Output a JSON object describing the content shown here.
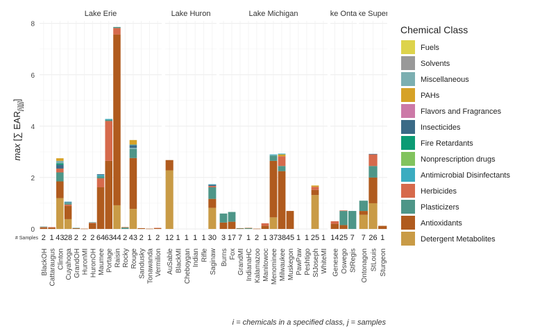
{
  "chart_data": {
    "type": "bar",
    "stacked": true,
    "ylabel_prefix": "max",
    "ylabel_main": "[∑ EAR",
    "ylabel_sub": "[i]",
    "ylabel_sub2": "[j]",
    "ylabel_suffix": "]",
    "footnote": "i = chemicals in a specified class, j = samples",
    "samples_label": "# Samples",
    "ylim": [
      0,
      8.1
    ],
    "yticks": [
      0,
      2,
      4,
      6,
      8
    ],
    "grid": true,
    "legend": {
      "title": "Chemical Class",
      "position": "right",
      "items": [
        {
          "name": "Fuels",
          "color": "#DDD34B"
        },
        {
          "name": "Solvents",
          "color": "#999999"
        },
        {
          "name": "Miscellaneous",
          "color": "#7CAFB1"
        },
        {
          "name": "PAHs",
          "color": "#D6A227"
        },
        {
          "name": "Flavors and Fragrances",
          "color": "#CC79A7"
        },
        {
          "name": "Insecticides",
          "color": "#3B6A86"
        },
        {
          "name": "Fire Retardants",
          "color": "#0C9B74"
        },
        {
          "name": "Nonprescription drugs",
          "color": "#82C35E"
        },
        {
          "name": "Antimicrobial Disinfectants",
          "color": "#3BACC0"
        },
        {
          "name": "Herbicides",
          "color": "#D66A4C"
        },
        {
          "name": "Plasticizers",
          "color": "#4E9688"
        },
        {
          "name": "Antioxidants",
          "color": "#B05B1E"
        },
        {
          "name": "Detergent Metabolites",
          "color": "#C99B46"
        }
      ]
    },
    "facets": [
      {
        "title": "Lake Erie",
        "sites": [
          {
            "name": "BlackOH",
            "samples": "2",
            "stack": [
              [
                "Antioxidants",
                0.05
              ],
              [
                "Herbicides",
                0.02
              ],
              [
                "Plasticizers",
                0.02
              ]
            ]
          },
          {
            "name": "Cattaraugus",
            "samples": "1",
            "stack": [
              [
                "Antioxidants",
                0.05
              ],
              [
                "Herbicides",
                0.02
              ]
            ]
          },
          {
            "name": "Clinton",
            "samples": "43",
            "stack": [
              [
                "Detergent Metabolites",
                1.2
              ],
              [
                "Antioxidants",
                0.65
              ],
              [
                "Plasticizers",
                0.35
              ],
              [
                "Herbicides",
                0.15
              ],
              [
                "Insecticides",
                0.15
              ],
              [
                "Fire Retardants",
                0.05
              ],
              [
                "Miscellaneous",
                0.1
              ],
              [
                "PAHs",
                0.1
              ]
            ]
          },
          {
            "name": "Cuyahoga",
            "samples": "28",
            "stack": [
              [
                "Detergent Metabolites",
                0.38
              ],
              [
                "Antioxidants",
                0.52
              ],
              [
                "Herbicides",
                0.05
              ],
              [
                "Plasticizers",
                0.05
              ],
              [
                "Miscellaneous",
                0.02
              ],
              [
                "Insecticides",
                0.02
              ],
              [
                "Antimicrobial Disinfectants",
                0.02
              ]
            ]
          },
          {
            "name": "GrandOH",
            "samples": "2",
            "stack": [
              [
                "Antioxidants",
                0.03
              ],
              [
                "Plasticizers",
                0.01
              ]
            ]
          },
          {
            "name": "HuronMI",
            "samples": "2",
            "stack": [
              [
                "Antioxidants",
                0.01
              ]
            ]
          },
          {
            "name": "HuronOH",
            "samples": "2",
            "stack": [
              [
                "Antioxidants",
                0.22
              ],
              [
                "Herbicides",
                0.02
              ],
              [
                "Plasticizers",
                0.02
              ]
            ]
          },
          {
            "name": "Maumee",
            "samples": "64",
            "stack": [
              [
                "Antioxidants",
                1.62
              ],
              [
                "Herbicides",
                0.35
              ],
              [
                "Plasticizers",
                0.08
              ],
              [
                "Antimicrobial Disinfectants",
                0.05
              ],
              [
                "Insecticides",
                0.03
              ]
            ]
          },
          {
            "name": "Portage",
            "samples": "63",
            "stack": [
              [
                "Antioxidants",
                2.65
              ],
              [
                "Herbicides",
                1.55
              ],
              [
                "Plasticizers",
                0.05
              ],
              [
                "Antimicrobial Disinfectants",
                0.03
              ]
            ]
          },
          {
            "name": "Raisin",
            "samples": "44",
            "stack": [
              [
                "Detergent Metabolites",
                0.92
              ],
              [
                "Antioxidants",
                6.65
              ],
              [
                "Herbicides",
                0.25
              ],
              [
                "Plasticizers",
                0.04
              ]
            ]
          },
          {
            "name": "Rocky",
            "samples": "2",
            "stack": [
              [
                "Plasticizers",
                0.05
              ],
              [
                "Antioxidants",
                0.02
              ]
            ]
          },
          {
            "name": "Rouge",
            "samples": "43",
            "stack": [
              [
                "Detergent Metabolites",
                0.78
              ],
              [
                "Antioxidants",
                1.98
              ],
              [
                "Plasticizers",
                0.35
              ],
              [
                "Miscellaneous",
                0.05
              ],
              [
                "Insecticides",
                0.1
              ],
              [
                "Antimicrobial Disinfectants",
                0.02
              ],
              [
                "PAHs",
                0.18
              ]
            ]
          },
          {
            "name": "Sandusky",
            "samples": "2",
            "stack": [
              [
                "Antioxidants",
                0.03
              ]
            ]
          },
          {
            "name": "Tonawanda",
            "samples": "1",
            "stack": [
              [
                "Antioxidants",
                0.01
              ]
            ]
          },
          {
            "name": "Vermilion",
            "samples": "2",
            "stack": [
              [
                "Antioxidants",
                0.03
              ],
              [
                "Herbicides",
                0.01
              ]
            ]
          }
        ]
      },
      {
        "title": "Lake Huron",
        "sites": [
          {
            "name": "AuSable",
            "samples": "12",
            "stack": [
              [
                "Detergent Metabolites",
                2.28
              ],
              [
                "Antioxidants",
                0.4
              ]
            ]
          },
          {
            "name": "BlackMI",
            "samples": "1",
            "stack": []
          },
          {
            "name": "Cheboygan",
            "samples": "1",
            "stack": []
          },
          {
            "name": "Indian",
            "samples": "1",
            "stack": []
          },
          {
            "name": "Rifle",
            "samples": "1",
            "stack": []
          },
          {
            "name": "Saginaw",
            "samples": "30",
            "stack": [
              [
                "Detergent Metabolites",
                0.82
              ],
              [
                "Antioxidants",
                0.35
              ],
              [
                "Plasticizers",
                0.45
              ],
              [
                "Herbicides",
                0.05
              ],
              [
                "Insecticides",
                0.05
              ],
              [
                "Antimicrobial Disinfectants",
                0.02
              ]
            ]
          }
        ]
      },
      {
        "title": "Lake Michigan",
        "sites": [
          {
            "name": "Burns",
            "samples": "3",
            "stack": [
              [
                "Antioxidants",
                0.25
              ],
              [
                "Plasticizers",
                0.35
              ]
            ]
          },
          {
            "name": "Fox",
            "samples": "17",
            "stack": [
              [
                "Antioxidants",
                0.28
              ],
              [
                "Plasticizers",
                0.38
              ]
            ]
          },
          {
            "name": "GrandMI",
            "samples": "7",
            "stack": [
              [
                "Plasticizers",
                0.02
              ],
              [
                "Antioxidants",
                0.01
              ]
            ]
          },
          {
            "name": "IndianaHC",
            "samples": "1",
            "stack": [
              [
                "Plasticizers",
                0.03
              ],
              [
                "Antioxidants",
                0.01
              ]
            ]
          },
          {
            "name": "Kalamazoo",
            "samples": "2",
            "stack": [
              [
                "Antioxidants",
                0.01
              ]
            ]
          },
          {
            "name": "Manitowoc",
            "samples": "1",
            "stack": [
              [
                "Antioxidants",
                0.12
              ],
              [
                "Herbicides",
                0.1
              ]
            ]
          },
          {
            "name": "Menominee",
            "samples": "37",
            "stack": [
              [
                "Detergent Metabolites",
                0.45
              ],
              [
                "Antioxidants",
                2.2
              ],
              [
                "Plasticizers",
                0.2
              ],
              [
                "Miscellaneous",
                0.02
              ],
              [
                "Antimicrobial Disinfectants",
                0.03
              ]
            ]
          },
          {
            "name": "Milwaukee",
            "samples": "38",
            "stack": [
              [
                "Antioxidants",
                2.25
              ],
              [
                "Plasticizers",
                0.2
              ],
              [
                "Herbicides",
                0.38
              ],
              [
                "PAHs",
                0.07
              ],
              [
                "Antimicrobial Disinfectants",
                0.03
              ]
            ]
          },
          {
            "name": "Muskegon",
            "samples": "45",
            "stack": [
              [
                "Antioxidants",
                0.7
              ]
            ]
          },
          {
            "name": "PawPaw",
            "samples": "1",
            "stack": []
          },
          {
            "name": "Peshtigo",
            "samples": "1",
            "stack": []
          },
          {
            "name": "StJoseph",
            "samples": "25",
            "stack": [
              [
                "Detergent Metabolites",
                1.32
              ],
              [
                "Antioxidants",
                0.2
              ],
              [
                "Herbicides",
                0.12
              ],
              [
                "PAHs",
                0.05
              ]
            ]
          },
          {
            "name": "WhiteMI",
            "samples": "1",
            "stack": []
          }
        ]
      },
      {
        "title": "Lake Ontario",
        "sites": [
          {
            "name": "Genesee",
            "samples": "14",
            "stack": [
              [
                "Antioxidants",
                0.2
              ],
              [
                "Herbicides",
                0.1
              ]
            ]
          },
          {
            "name": "Oswego",
            "samples": "25",
            "stack": [
              [
                "Antioxidants",
                0.15
              ],
              [
                "Plasticizers",
                0.55
              ],
              [
                "Herbicides",
                0.02
              ]
            ]
          },
          {
            "name": "StRegis",
            "samples": "7",
            "stack": [
              [
                "Plasticizers",
                0.7
              ]
            ]
          }
        ]
      },
      {
        "title": "Lake Superior",
        "sites": [
          {
            "name": "Ontonagon",
            "samples": "7",
            "stack": [
              [
                "Detergent Metabolites",
                0.55
              ],
              [
                "Antioxidants",
                0.15
              ],
              [
                "Plasticizers",
                0.4
              ]
            ]
          },
          {
            "name": "StLouis",
            "samples": "26",
            "stack": [
              [
                "Detergent Metabolites",
                1.0
              ],
              [
                "Antioxidants",
                1.0
              ],
              [
                "Plasticizers",
                0.45
              ],
              [
                "Herbicides",
                0.45
              ],
              [
                "Insecticides",
                0.02
              ]
            ]
          },
          {
            "name": "Sturgeon",
            "samples": "1",
            "stack": [
              [
                "Antioxidants",
                0.12
              ]
            ]
          }
        ]
      }
    ]
  }
}
